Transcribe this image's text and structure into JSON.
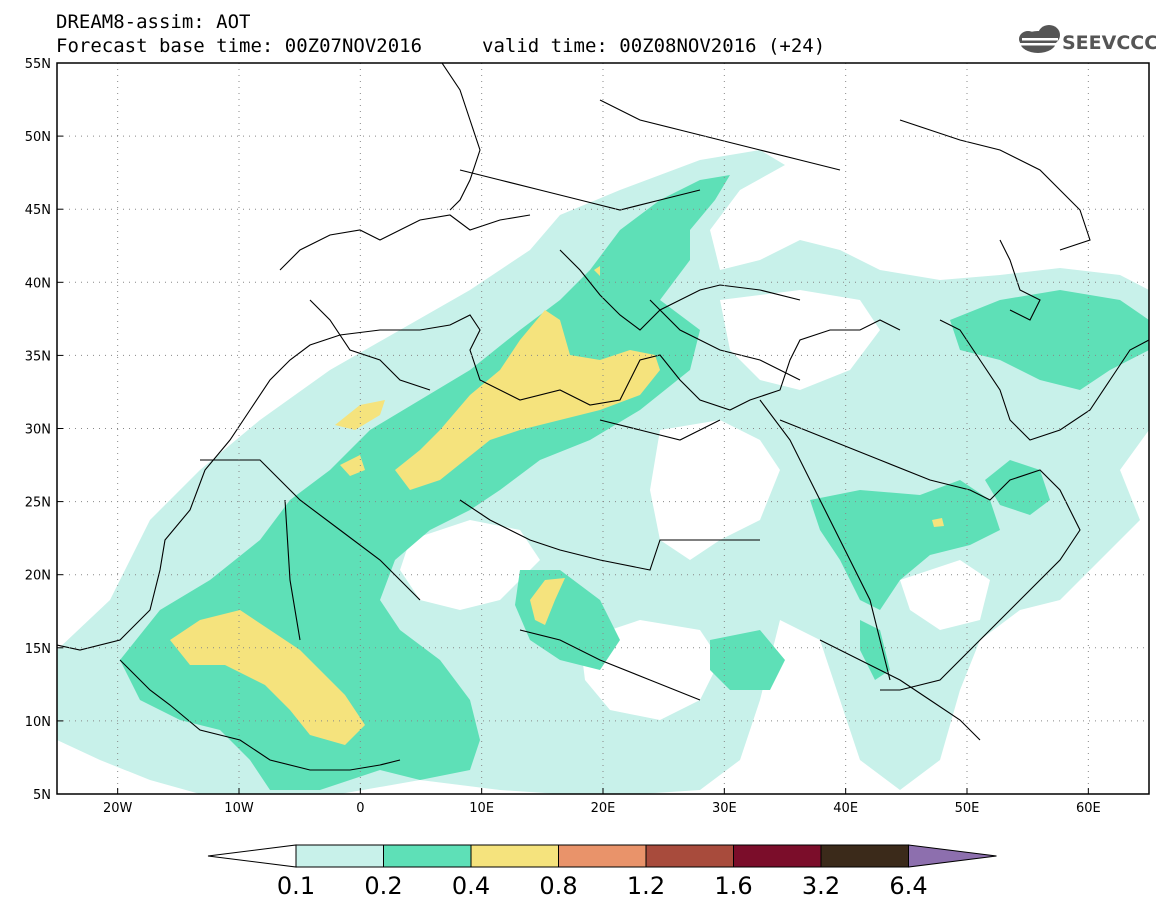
{
  "header": {
    "title": "DREAM8-assim: AOT",
    "base_time": "Forecast base time: 00Z07NOV2016",
    "valid_time": "valid time: 00Z08NOV2016 (+24)",
    "logo_text": "SEEVCCC"
  },
  "map": {
    "lon_range": [
      -25,
      65
    ],
    "lat_range": [
      5,
      55
    ],
    "lon_ticks": [
      "20W",
      "10W",
      "0",
      "10E",
      "20E",
      "30E",
      "40E",
      "50E",
      "60E"
    ],
    "lat_ticks": [
      "5N",
      "10N",
      "15N",
      "20N",
      "25N",
      "30N",
      "35N",
      "40N",
      "45N",
      "50N",
      "55N"
    ],
    "grid": "dotted"
  },
  "colorbar": {
    "levels": [
      "0.1",
      "0.2",
      "0.4",
      "0.8",
      "1.2",
      "1.6",
      "3.2",
      "6.4"
    ],
    "colors": [
      "#c8f1ea",
      "#5ee0b7",
      "#f5e37d",
      "#e9936a",
      "#a84b3c",
      "#7b0d2a",
      "#3b2a1a",
      "#8d6fae"
    ]
  }
}
